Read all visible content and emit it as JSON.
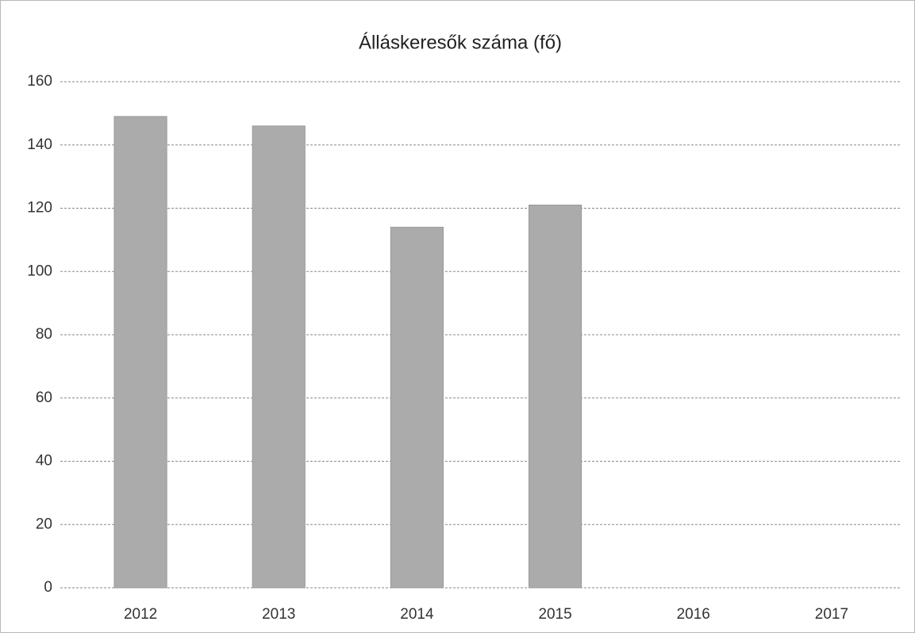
{
  "chart_data": {
    "type": "bar",
    "title": "Álláskeresők száma (fő)",
    "categories": [
      "2012",
      "2013",
      "2014",
      "2015",
      "2016",
      "2017"
    ],
    "values": [
      149,
      146,
      114,
      121,
      null,
      null
    ],
    "color": "#ababab",
    "ylim": [
      0,
      160
    ],
    "yticks": [
      0,
      20,
      40,
      60,
      80,
      100,
      120,
      140,
      160
    ],
    "grid": true
  }
}
